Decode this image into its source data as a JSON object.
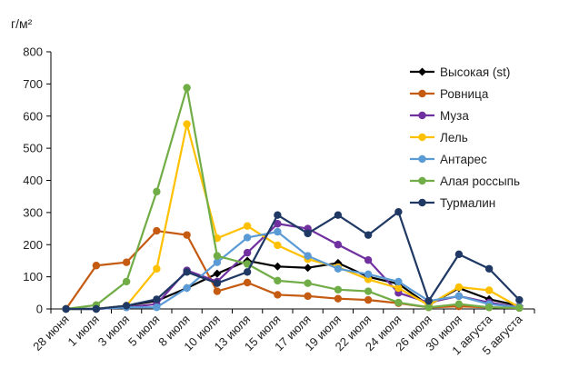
{
  "chart_data": {
    "type": "line",
    "title": "",
    "ylabel": "г/м²",
    "xlabel": "",
    "ylim": [
      0,
      800
    ],
    "yticks": [
      0,
      100,
      200,
      300,
      400,
      500,
      600,
      700,
      800
    ],
    "grid": false,
    "legend_position": "right",
    "categories": [
      "28 июня",
      "1 июля",
      "3 июля",
      "5 июля",
      "8 июля",
      "10 июля",
      "13 июля",
      "15 июля",
      "17 июля",
      "19 июля",
      "22 июля",
      "24 июля",
      "26 июля",
      "30 июля",
      "1 августа",
      "5 августа"
    ],
    "series": [
      {
        "name": "Высокая (st)",
        "color": "#000000",
        "marker": "diamond",
        "values": [
          0,
          0,
          10,
          25,
          65,
          110,
          150,
          132,
          128,
          143,
          100,
          78,
          12,
          65,
          30,
          10
        ]
      },
      {
        "name": "Ровница",
        "color": "#c55a11",
        "marker": "circle",
        "values": [
          0,
          135,
          145,
          243,
          230,
          55,
          82,
          44,
          40,
          32,
          28,
          18,
          5,
          8,
          5,
          3
        ]
      },
      {
        "name": "Муза",
        "color": "#7030a0",
        "marker": "circle",
        "values": [
          0,
          0,
          5,
          15,
          120,
          85,
          175,
          265,
          250,
          200,
          152,
          50,
          20,
          40,
          20,
          5
        ]
      },
      {
        "name": "Лель",
        "color": "#ffc000",
        "marker": "circle",
        "values": [
          0,
          0,
          10,
          125,
          575,
          220,
          258,
          198,
          155,
          130,
          92,
          65,
          12,
          68,
          58,
          5
        ]
      },
      {
        "name": "Антарес",
        "color": "#5b9bd5",
        "marker": "circle",
        "values": [
          0,
          0,
          5,
          5,
          65,
          145,
          222,
          240,
          165,
          125,
          108,
          85,
          25,
          40,
          15,
          5
        ]
      },
      {
        "name": "Алая россыпь",
        "color": "#70ad47",
        "marker": "circle",
        "values": [
          0,
          12,
          85,
          365,
          688,
          165,
          140,
          88,
          80,
          60,
          55,
          20,
          5,
          15,
          5,
          3
        ]
      },
      {
        "name": "Турмалин",
        "color": "#1f3864",
        "marker": "circle",
        "values": [
          0,
          0,
          10,
          30,
          115,
          80,
          115,
          292,
          235,
          292,
          230,
          302,
          25,
          170,
          125,
          28
        ]
      }
    ]
  }
}
